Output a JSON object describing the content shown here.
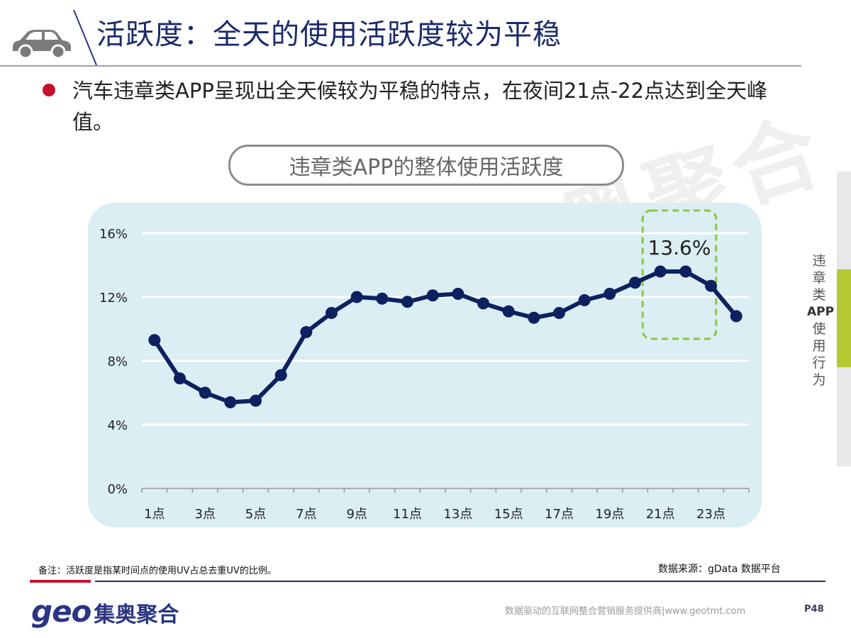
{
  "header": {
    "title": "活跃度：全天的使用活跃度较为平稳",
    "icon": "car-icon"
  },
  "bullet": {
    "text": "汽车违章类APP呈现出全天候较为平稳的特点，在夜间21点-22点达到全天峰值。"
  },
  "chart_title": "违章类APP的整体使用活跃度",
  "watermark": "奥聚合",
  "side_tab": {
    "lines": [
      "违",
      "章",
      "类"
    ],
    "bold": "APP",
    "lines2": [
      "使",
      "用",
      "行",
      "为"
    ]
  },
  "colors": {
    "title": "#1b2a6b",
    "line": "#0d2160",
    "panel": "#daeef4",
    "highlight": "#8cc63f",
    "bullet": "#c8102e",
    "side_green": "#b4c832"
  },
  "chart_data": {
    "type": "line",
    "x_tick_labels": [
      "1点",
      "3点",
      "5点",
      "7点",
      "9点",
      "11点",
      "13点",
      "15点",
      "17点",
      "19点",
      "21点",
      "23点"
    ],
    "y_tick_labels": [
      "0%",
      "4%",
      "8%",
      "12%",
      "16%"
    ],
    "ylim": [
      0,
      16
    ],
    "y_ticks": [
      0,
      4,
      8,
      12,
      16
    ],
    "x": [
      1,
      2,
      3,
      4,
      5,
      6,
      7,
      8,
      9,
      10,
      11,
      12,
      13,
      14,
      15,
      16,
      17,
      18,
      19,
      20,
      21,
      22,
      23,
      24
    ],
    "values": [
      9.3,
      6.9,
      6.0,
      5.4,
      5.5,
      7.1,
      9.8,
      11.0,
      12.0,
      11.9,
      11.7,
      12.1,
      12.2,
      11.6,
      11.1,
      10.7,
      11.0,
      11.8,
      12.2,
      12.9,
      13.6,
      13.6,
      12.7,
      10.8
    ],
    "annotation": {
      "text": "13.6%",
      "x_range": [
        21,
        22
      ]
    },
    "grid": true
  },
  "footer": {
    "note": "备注：活跃度是指某时间点的使用UV占总去重UV的比例。",
    "source": "数据来源：gData  数据平台",
    "logo_geo": "geo",
    "logo_cn": "集奥聚合",
    "tagline": "数据驱动的互联网整合营销服务提供商|www.geotmt.com",
    "page": "P48"
  }
}
